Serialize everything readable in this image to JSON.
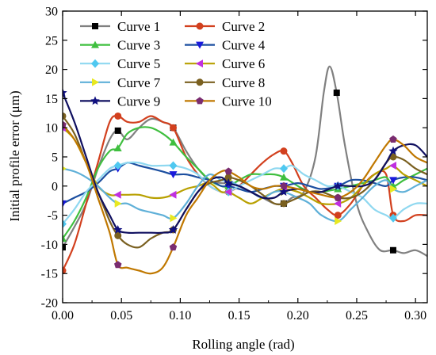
{
  "chart_data": {
    "type": "line",
    "xlabel": "Rolling angle (rad)",
    "ylabel": "Initial profile error (μm)",
    "xlim": [
      0.0,
      0.31
    ],
    "ylim": [
      -20,
      30
    ],
    "xticks": [
      0.0,
      0.05,
      0.1,
      0.15,
      0.2,
      0.25,
      0.3
    ],
    "xtick_labels": [
      "0.00",
      "0.05",
      "0.10",
      "0.15",
      "0.20",
      "0.25",
      "0.30"
    ],
    "yticks": [
      -20,
      -15,
      -10,
      -5,
      0,
      5,
      10,
      15,
      20,
      25,
      30
    ],
    "ytick_labels": [
      "-20",
      "-15",
      "-10",
      "-5",
      "0",
      "5",
      "10",
      "15",
      "20",
      "25",
      "30"
    ],
    "grid": false,
    "legend": {
      "placement": "top-left",
      "columns": 2
    },
    "series": [
      {
        "name": "Curve 1",
        "color": "#808080",
        "marker": "square",
        "markerColor": "#000000",
        "x": [
          0.0,
          0.01,
          0.02,
          0.03,
          0.04,
          0.047,
          0.055,
          0.065,
          0.075,
          0.085,
          0.094,
          0.105,
          0.115,
          0.125,
          0.135,
          0.141,
          0.15,
          0.16,
          0.17,
          0.18,
          0.188,
          0.195,
          0.205,
          0.215,
          0.222,
          0.227,
          0.233,
          0.24,
          0.25,
          0.26,
          0.27,
          0.281,
          0.29,
          0.3,
          0.31
        ],
        "y": [
          -10.5,
          -7,
          -3,
          3,
          8,
          9.5,
          8,
          10,
          11.5,
          11,
          10,
          6,
          3,
          1,
          0.5,
          0.5,
          0,
          -1,
          -2,
          -3,
          -3,
          -2,
          -1,
          5,
          16,
          20.5,
          16,
          7,
          -3,
          -8,
          -11,
          -11,
          -11.5,
          -11,
          -12
        ]
      },
      {
        "name": "Curve 2",
        "color": "#d2401e",
        "marker": "circle",
        "markerColor": "#d2401e",
        "x": [
          0.0,
          0.01,
          0.02,
          0.03,
          0.04,
          0.047,
          0.055,
          0.065,
          0.075,
          0.085,
          0.094,
          0.105,
          0.115,
          0.125,
          0.135,
          0.141,
          0.15,
          0.16,
          0.17,
          0.18,
          0.188,
          0.195,
          0.205,
          0.215,
          0.225,
          0.234,
          0.245,
          0.255,
          0.265,
          0.275,
          0.281,
          0.29,
          0.3,
          0.31
        ],
        "y": [
          -14.5,
          -10,
          -3,
          4,
          11,
          12,
          11,
          11,
          12,
          11,
          10,
          5,
          2,
          0,
          -1,
          -1,
          0,
          2,
          4,
          5.5,
          6,
          4,
          0,
          -2,
          -4,
          -5,
          -3,
          0,
          2,
          2,
          -5,
          -6,
          -5,
          -5
        ]
      },
      {
        "name": "Curve 3",
        "color": "#3fbf3f",
        "marker": "triangle-up",
        "markerColor": "#3fbf3f",
        "x": [
          0.0,
          0.01,
          0.02,
          0.03,
          0.04,
          0.047,
          0.055,
          0.065,
          0.075,
          0.085,
          0.094,
          0.105,
          0.115,
          0.125,
          0.135,
          0.141,
          0.15,
          0.16,
          0.17,
          0.18,
          0.188,
          0.2,
          0.21,
          0.22,
          0.234,
          0.245,
          0.255,
          0.265,
          0.275,
          0.281,
          0.29,
          0.3,
          0.31
        ],
        "y": [
          -9,
          -6,
          -2,
          3,
          6,
          6.5,
          9,
          10,
          10,
          9,
          7.5,
          5,
          3,
          1,
          0,
          0,
          1,
          2,
          2,
          2,
          1.5,
          0,
          -1,
          -1,
          -0.5,
          0,
          0.5,
          1,
          1.5,
          0,
          1,
          2,
          3
        ]
      },
      {
        "name": "Curve 4",
        "color": "#1c4fa0",
        "marker": "triangle-down",
        "markerColor": "#1a1adc",
        "x": [
          0.0,
          0.01,
          0.02,
          0.03,
          0.04,
          0.047,
          0.055,
          0.065,
          0.075,
          0.085,
          0.094,
          0.105,
          0.115,
          0.125,
          0.135,
          0.141,
          0.15,
          0.16,
          0.17,
          0.18,
          0.188,
          0.2,
          0.21,
          0.22,
          0.234,
          0.245,
          0.255,
          0.265,
          0.275,
          0.281,
          0.29,
          0.3,
          0.31
        ],
        "y": [
          -3,
          -2,
          -1,
          0.5,
          2.5,
          3,
          4,
          3.5,
          3,
          2.5,
          2,
          2,
          1.5,
          1,
          0,
          0,
          -0.5,
          -1,
          -0.5,
          0,
          0,
          0.5,
          0,
          -0.5,
          0,
          1,
          1,
          0.5,
          0,
          1,
          1.5,
          1.5,
          1
        ]
      },
      {
        "name": "Curve 5",
        "color": "#8fd8f0",
        "marker": "diamond",
        "markerColor": "#4fc8f0",
        "x": [
          0.0,
          0.01,
          0.02,
          0.03,
          0.04,
          0.047,
          0.055,
          0.065,
          0.075,
          0.085,
          0.094,
          0.105,
          0.115,
          0.125,
          0.135,
          0.141,
          0.15,
          0.16,
          0.17,
          0.18,
          0.188,
          0.195,
          0.205,
          0.215,
          0.225,
          0.234,
          0.245,
          0.255,
          0.265,
          0.275,
          0.281,
          0.29,
          0.3,
          0.31
        ],
        "y": [
          -6.5,
          -4,
          -1,
          1,
          3,
          3.5,
          4,
          4,
          3.5,
          3.5,
          3.5,
          3,
          2,
          0,
          -1,
          -1,
          0,
          1,
          2,
          3,
          3,
          3.5,
          2,
          1,
          0,
          0,
          -1,
          -2,
          -4,
          -5,
          -5.5,
          -4,
          -3,
          -3
        ]
      },
      {
        "name": "Curve 6",
        "color": "#b8a000",
        "marker": "triangle-left",
        "markerColor": "#c030e0",
        "x": [
          0.0,
          0.01,
          0.02,
          0.03,
          0.04,
          0.047,
          0.055,
          0.065,
          0.075,
          0.085,
          0.094,
          0.105,
          0.115,
          0.125,
          0.135,
          0.141,
          0.15,
          0.16,
          0.17,
          0.18,
          0.188,
          0.2,
          0.21,
          0.22,
          0.234,
          0.245,
          0.255,
          0.265,
          0.275,
          0.281,
          0.29,
          0.3,
          0.31
        ],
        "y": [
          10,
          8,
          4,
          0,
          -1.5,
          -1.5,
          -1.5,
          -1.5,
          -2,
          -2,
          -1.5,
          -0.5,
          0,
          0.5,
          -1,
          -1,
          -2,
          -3,
          -2,
          -1,
          -0.5,
          -1,
          -2,
          -3,
          -3,
          -2,
          0,
          2,
          3,
          3.5,
          2,
          1,
          0
        ]
      },
      {
        "name": "Curve 7",
        "color": "#5fb0d8",
        "marker": "triangle-right",
        "markerColor": "#e8e820",
        "x": [
          0.0,
          0.01,
          0.02,
          0.03,
          0.04,
          0.047,
          0.055,
          0.065,
          0.075,
          0.085,
          0.094,
          0.105,
          0.115,
          0.125,
          0.135,
          0.141,
          0.15,
          0.16,
          0.17,
          0.18,
          0.188,
          0.2,
          0.21,
          0.22,
          0.234,
          0.245,
          0.255,
          0.265,
          0.275,
          0.281,
          0.29,
          0.3,
          0.31
        ],
        "y": [
          3,
          2.5,
          1.5,
          0,
          -2,
          -3,
          -3,
          -4,
          -4.5,
          -5,
          -5.5,
          -3,
          0,
          2,
          1,
          1,
          0,
          -1,
          -2,
          -1,
          -1,
          -2,
          -3,
          -5,
          -6,
          -4,
          -2,
          0,
          1,
          -0.5,
          -1,
          0,
          1
        ]
      },
      {
        "name": "Curve 8",
        "color": "#7a6020",
        "marker": "circle",
        "markerColor": "#7a6020",
        "x": [
          0.0,
          0.01,
          0.02,
          0.03,
          0.04,
          0.047,
          0.055,
          0.065,
          0.075,
          0.085,
          0.094,
          0.105,
          0.115,
          0.125,
          0.135,
          0.141,
          0.15,
          0.16,
          0.17,
          0.18,
          0.188,
          0.2,
          0.21,
          0.22,
          0.234,
          0.245,
          0.255,
          0.265,
          0.275,
          0.281,
          0.29,
          0.3,
          0.31
        ],
        "y": [
          12,
          9,
          4,
          -1,
          -6,
          -8.5,
          -10,
          -10.5,
          -9,
          -8,
          -7.5,
          -4,
          -1,
          0.5,
          1,
          1.5,
          1,
          0,
          -1.5,
          -3,
          -3,
          -2,
          -1,
          -1,
          -2,
          -2,
          -1,
          1,
          4,
          5,
          4.5,
          3,
          2
        ]
      },
      {
        "name": "Curve 9",
        "color": "#101060",
        "marker": "star",
        "markerColor": "#101080",
        "x": [
          0.0,
          0.01,
          0.02,
          0.03,
          0.04,
          0.047,
          0.055,
          0.065,
          0.075,
          0.085,
          0.094,
          0.105,
          0.115,
          0.125,
          0.135,
          0.141,
          0.15,
          0.16,
          0.17,
          0.18,
          0.188,
          0.2,
          0.21,
          0.22,
          0.234,
          0.245,
          0.255,
          0.265,
          0.275,
          0.281,
          0.29,
          0.3,
          0.31
        ],
        "y": [
          16,
          11,
          5,
          -1,
          -5,
          -7.5,
          -8,
          -8,
          -8,
          -8,
          -7.5,
          -4,
          -1,
          1,
          1.5,
          0.5,
          0,
          -1,
          -2,
          -2,
          -1,
          -0.5,
          -1,
          -1,
          0,
          0,
          0,
          1,
          4,
          6,
          7,
          7,
          5
        ]
      },
      {
        "name": "Curve 10",
        "color": "#c07800",
        "marker": "pentagon",
        "markerColor": "#7a2c70",
        "x": [
          0.0,
          0.01,
          0.02,
          0.03,
          0.04,
          0.047,
          0.055,
          0.065,
          0.075,
          0.085,
          0.094,
          0.105,
          0.115,
          0.125,
          0.135,
          0.141,
          0.15,
          0.16,
          0.17,
          0.18,
          0.188,
          0.2,
          0.21,
          0.22,
          0.234,
          0.245,
          0.255,
          0.265,
          0.275,
          0.281,
          0.29,
          0.3,
          0.31
        ],
        "y": [
          10.5,
          8,
          4,
          -2,
          -8,
          -13.5,
          -14,
          -14.5,
          -15,
          -14,
          -10.5,
          -5,
          -2,
          1,
          2.5,
          2.5,
          1.5,
          0,
          -0.5,
          0,
          0,
          -0.5,
          -1,
          -1.5,
          -2,
          -1,
          1,
          4,
          7,
          8,
          7,
          5,
          4
        ]
      }
    ]
  }
}
